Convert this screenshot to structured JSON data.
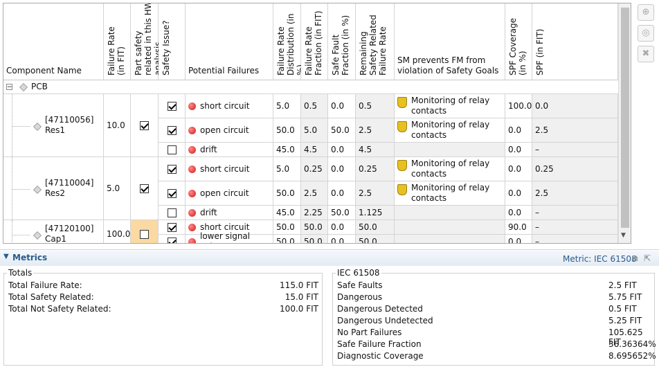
{
  "table": {
    "columns": [
      "Component Name",
      "Failure Rate (in FIT)",
      "Part safety related in this HW analysis",
      "Safety Issue?",
      "Potential Failures",
      "Failure Rate Distribution (in %)",
      "Failure Rate Fraction (in FIT)",
      "Safe Fault Fraction (in %)",
      "Remaining Safety Related Failure Rate",
      "SM prevents FM from violation of Safety Goals",
      "SPF Coverage (in %)",
      "SPF (in FIT)"
    ],
    "root": "PCB",
    "components": [
      {
        "id": "[47110056]",
        "name": "Res1",
        "failure_rate": "10.0",
        "safety_related": true,
        "failures": [
          {
            "safety_issue": true,
            "name": "short circuit",
            "distribution": "5.0",
            "fraction": "0.5",
            "safe_fault_fraction": "0.0",
            "remaining": "0.5",
            "mechanism": "Monitoring of relay contacts",
            "spf_coverage": "100.0",
            "spf": "0.0"
          },
          {
            "safety_issue": true,
            "name": "open circuit",
            "distribution": "50.0",
            "fraction": "5.0",
            "safe_fault_fraction": "50.0",
            "remaining": "2.5",
            "mechanism": "Monitoring of relay contacts",
            "spf_coverage": "0.0",
            "spf": "2.5"
          },
          {
            "safety_issue": false,
            "name": "drift",
            "distribution": "45.0",
            "fraction": "4.5",
            "safe_fault_fraction": "0.0",
            "remaining": "4.5",
            "mechanism": null,
            "spf_coverage": "0.0",
            "spf": "–"
          }
        ]
      },
      {
        "id": "[47110004]",
        "name": "Res2",
        "failure_rate": "5.0",
        "safety_related": true,
        "failures": [
          {
            "safety_issue": true,
            "name": "short circuit",
            "distribution": "5.0",
            "fraction": "0.25",
            "safe_fault_fraction": "0.0",
            "remaining": "0.25",
            "mechanism": "Monitoring of relay contacts",
            "spf_coverage": "0.0",
            "spf": "0.25"
          },
          {
            "safety_issue": true,
            "name": "open circuit",
            "distribution": "50.0",
            "fraction": "2.5",
            "safe_fault_fraction": "0.0",
            "remaining": "2.5",
            "mechanism": "Monitoring of relay contacts",
            "spf_coverage": "0.0",
            "spf": "2.5"
          },
          {
            "safety_issue": false,
            "name": "drift",
            "distribution": "45.0",
            "fraction": "2.25",
            "safe_fault_fraction": "50.0",
            "remaining": "1.125",
            "mechanism": null,
            "spf_coverage": "0.0",
            "spf": "–"
          }
        ]
      },
      {
        "id": "[47120100]",
        "name": "Cap1",
        "failure_rate": "100.0",
        "safety_related": false,
        "failures": [
          {
            "safety_issue": true,
            "name": "short circuit",
            "distribution": "50.0",
            "fraction": "50.0",
            "safe_fault_fraction": "0.0",
            "remaining": "50.0",
            "mechanism": null,
            "spf_coverage": "90.0",
            "spf": "–"
          },
          {
            "safety_issue": true,
            "name": "lower signal value",
            "distribution": "50.0",
            "fraction": "50.0",
            "safe_fault_fraction": "0.0",
            "remaining": "50.0",
            "mechanism": null,
            "spf_coverage": "0.0",
            "spf": "–"
          }
        ]
      }
    ]
  },
  "metrics": {
    "title": "Metrics",
    "metric_label": "Metric: IEC 61508",
    "totals": {
      "title": "Totals",
      "rows": [
        [
          "Total Failure Rate:",
          "115.0 FIT"
        ],
        [
          "Total Safety Related:",
          "15.0 FIT"
        ],
        [
          "Total Not Safety Related:",
          "100.0 FIT"
        ]
      ]
    },
    "standard": {
      "title": "IEC 61508",
      "rows": [
        [
          "Safe Faults",
          "2.5 FIT"
        ],
        [
          "Dangerous",
          "5.75 FIT"
        ],
        [
          "Dangerous Detected",
          "0.5 FIT"
        ],
        [
          "Dangerous Undetected",
          "5.25 FIT"
        ],
        [
          "No Part Failures",
          "105.625 FIT"
        ],
        [
          "Safe Failure Fraction",
          "36.36364%"
        ],
        [
          "Diagnostic Coverage",
          "8.695652%"
        ]
      ]
    }
  }
}
